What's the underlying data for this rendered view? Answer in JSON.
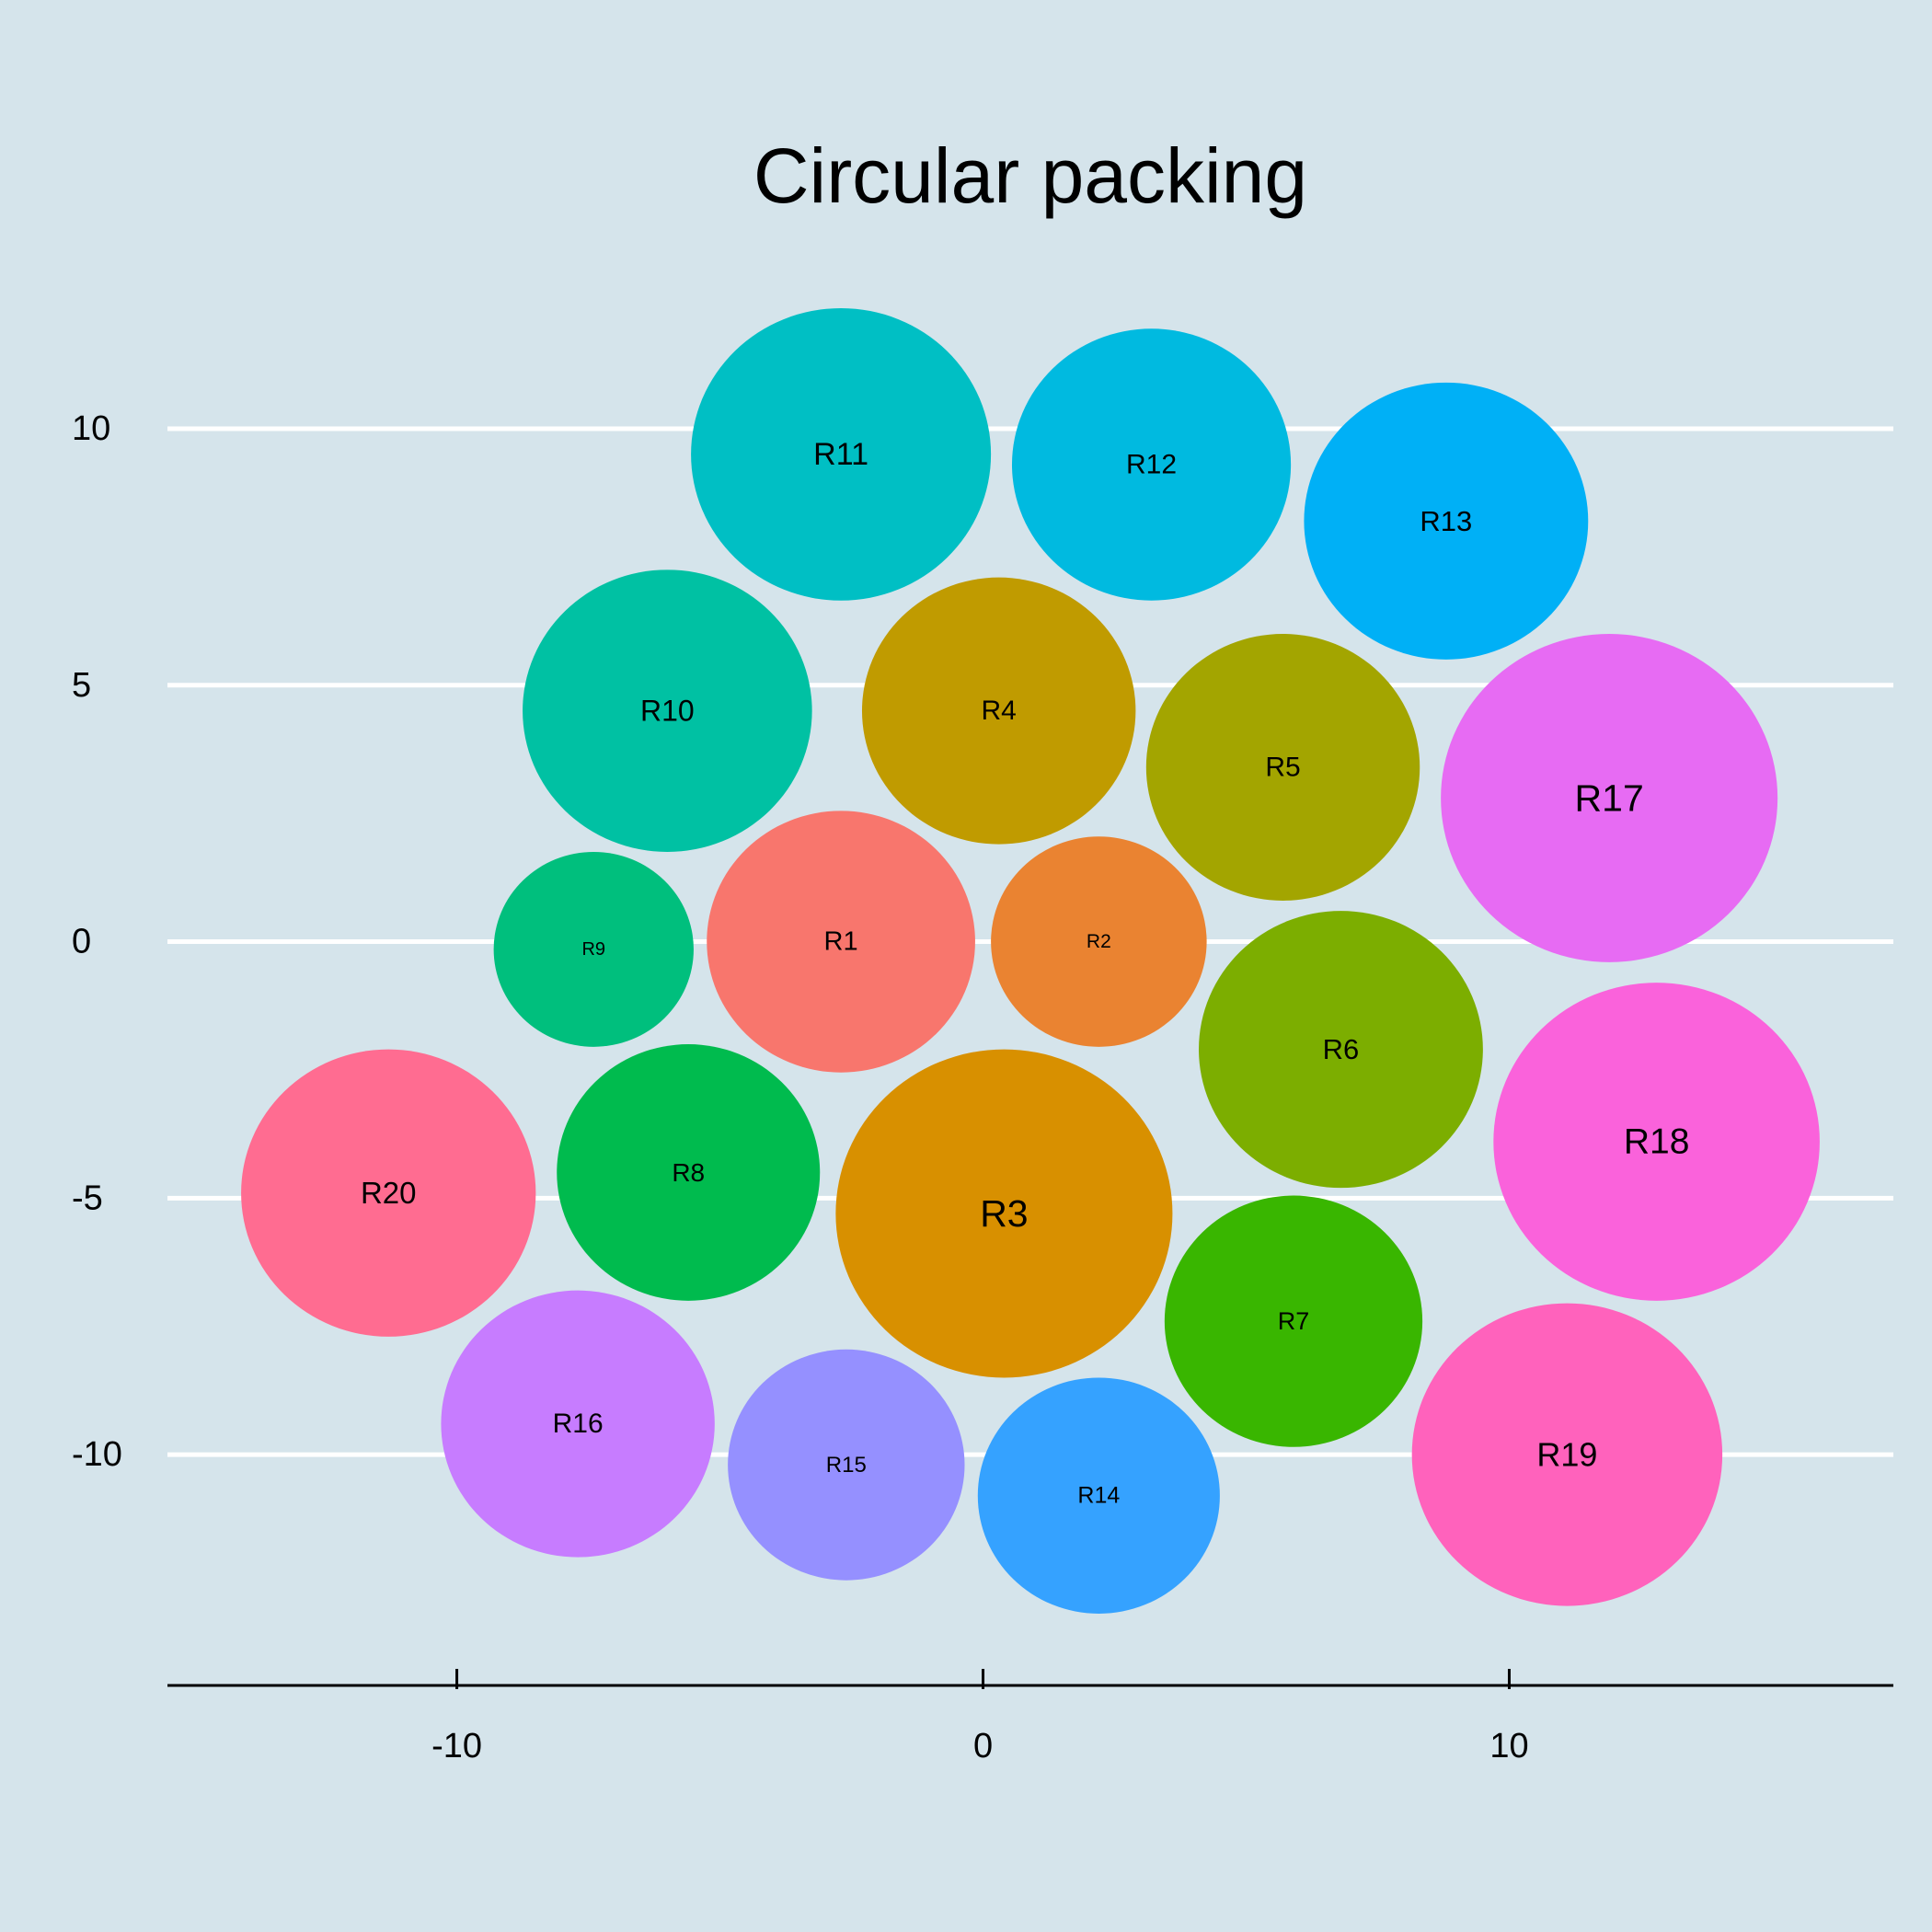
{
  "chart_data": {
    "type": "bubble",
    "title": "Circular packing",
    "xlabel": "",
    "ylabel": "",
    "xlim": [
      -15.5,
      17.3
    ],
    "ylim": [
      -14.5,
      13.3
    ],
    "x_ticks": [
      {
        "value": -10,
        "label": "-10"
      },
      {
        "value": 0,
        "label": "0"
      },
      {
        "value": 10,
        "label": "10"
      }
    ],
    "y_ticks": [
      {
        "value": 10,
        "label": "10"
      },
      {
        "value": 5,
        "label": "5"
      },
      {
        "value": 0,
        "label": "0"
      },
      {
        "value": -5,
        "label": "-5"
      },
      {
        "value": -10,
        "label": "-10"
      }
    ],
    "grid": {
      "horizontal": true,
      "vertical": false,
      "color": "#ffffff"
    },
    "background": "#d5e4eb",
    "axis_color": "#000000",
    "circles": [
      {
        "label": "R1",
        "x": -2.7,
        "y": 0.0,
        "r": 2.55,
        "color": "#F8766D"
      },
      {
        "label": "R2",
        "x": 2.2,
        "y": 0.0,
        "r": 2.05,
        "color": "#EA8331"
      },
      {
        "label": "R3",
        "x": 0.4,
        "y": -5.3,
        "r": 3.2,
        "color": "#D89000"
      },
      {
        "label": "R4",
        "x": 0.3,
        "y": 4.5,
        "r": 2.6,
        "color": "#C09B00"
      },
      {
        "label": "R5",
        "x": 5.7,
        "y": 3.4,
        "r": 2.6,
        "color": "#A3A500"
      },
      {
        "label": "R6",
        "x": 6.8,
        "y": -2.1,
        "r": 2.7,
        "color": "#7CAE00"
      },
      {
        "label": "R7",
        "x": 5.9,
        "y": -7.4,
        "r": 2.45,
        "color": "#39B600"
      },
      {
        "label": "R8",
        "x": -5.6,
        "y": -4.5,
        "r": 2.5,
        "color": "#00BB4E"
      },
      {
        "label": "R9",
        "x": -7.4,
        "y": -0.15,
        "r": 1.9,
        "color": "#00BF7D"
      },
      {
        "label": "R10",
        "x": -6.0,
        "y": 4.5,
        "r": 2.75,
        "color": "#00C1A3"
      },
      {
        "label": "R11",
        "x": -2.7,
        "y": 9.5,
        "r": 2.85,
        "color": "#00BFC4"
      },
      {
        "label": "R12",
        "x": 3.2,
        "y": 9.3,
        "r": 2.65,
        "color": "#00BAE0"
      },
      {
        "label": "R13",
        "x": 8.8,
        "y": 8.2,
        "r": 2.7,
        "color": "#00B0F6"
      },
      {
        "label": "R14",
        "x": 2.2,
        "y": -10.8,
        "r": 2.3,
        "color": "#35A2FF"
      },
      {
        "label": "R15",
        "x": -2.6,
        "y": -10.2,
        "r": 2.25,
        "color": "#9590FF"
      },
      {
        "label": "R16",
        "x": -7.7,
        "y": -9.4,
        "r": 2.6,
        "color": "#C77CFF"
      },
      {
        "label": "R17",
        "x": 11.9,
        "y": 2.8,
        "r": 3.2,
        "color": "#E76BF3"
      },
      {
        "label": "R18",
        "x": 12.8,
        "y": -3.9,
        "r": 3.1,
        "color": "#FA62DB"
      },
      {
        "label": "R19",
        "x": 11.1,
        "y": -10.0,
        "r": 2.95,
        "color": "#FF62BC"
      },
      {
        "label": "R20",
        "x": -11.3,
        "y": -4.9,
        "r": 2.8,
        "color": "#FF6C91"
      }
    ]
  }
}
